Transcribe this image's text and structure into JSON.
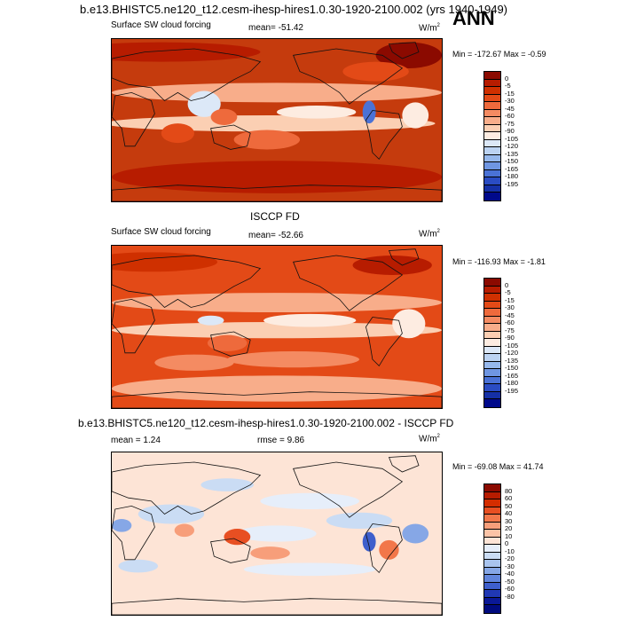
{
  "header": {
    "title": "b.e13.BHISTC5.ne120_t12.cesm-ihesp-hires1.0.30-1920-2100.002 (yrs 1940-1949)",
    "season": "ANN"
  },
  "chart_data": [
    {
      "type": "heatmap",
      "panel": "model",
      "title": "b.e13.BHISTC5.ne120_t12.cesm-ihesp-hires1.0.30-1920-2100.002 (yrs 1940-1949)",
      "variable": "Surface SW cloud forcing",
      "stat": "mean= -51.42",
      "units_base": "W/m",
      "units_exp": "2",
      "range_text": "Min = -172.67 Max =  -0.59",
      "colorbar_levels": [
        "0",
        "-5",
        "-15",
        "-30",
        "-45",
        "-60",
        "-75",
        "-90",
        "-105",
        "-120",
        "-135",
        "-150",
        "-165",
        "-180",
        "-195"
      ],
      "colorbar_colors": [
        "#8b0a00",
        "#b71c00",
        "#cf3000",
        "#e34a17",
        "#ee6a3c",
        "#f48b62",
        "#f8ad8a",
        "#fbcfb3",
        "#fdece1",
        "#dce8f7",
        "#bcd3f2",
        "#96b8ec",
        "#6f96e2",
        "#4a72d6",
        "#2a4cc3",
        "#1530a6",
        "#00098b"
      ],
      "base": "#c53b0d",
      "blobs": [
        {
          "cx": 0.5,
          "cy": 0.33,
          "rx": 0.5,
          "ry": 0.06,
          "c": "#f8ad8a"
        },
        {
          "cx": 0.48,
          "cy": 0.52,
          "rx": 0.5,
          "ry": 0.05,
          "c": "#fbcfb3"
        },
        {
          "cx": 0.62,
          "cy": 0.45,
          "rx": 0.12,
          "ry": 0.04,
          "c": "#fdece1"
        },
        {
          "cx": 0.28,
          "cy": 0.4,
          "rx": 0.05,
          "ry": 0.08,
          "c": "#dce8f7"
        },
        {
          "cx": 0.78,
          "cy": 0.45,
          "rx": 0.02,
          "ry": 0.07,
          "c": "#4a72d6"
        },
        {
          "cx": 0.92,
          "cy": 0.47,
          "rx": 0.04,
          "ry": 0.08,
          "c": "#fdece1"
        },
        {
          "cx": 0.2,
          "cy": 0.58,
          "rx": 0.05,
          "ry": 0.06,
          "c": "#e34a17"
        },
        {
          "cx": 0.47,
          "cy": 0.62,
          "rx": 0.1,
          "ry": 0.06,
          "c": "#ee6a3c"
        },
        {
          "cx": 0.15,
          "cy": 0.08,
          "rx": 0.3,
          "ry": 0.06,
          "c": "#b71c00"
        },
        {
          "cx": 0.9,
          "cy": 0.1,
          "rx": 0.1,
          "ry": 0.08,
          "c": "#8b0a00"
        },
        {
          "cx": 0.5,
          "cy": 0.85,
          "rx": 0.5,
          "ry": 0.1,
          "c": "#b71c00"
        },
        {
          "cx": 0.34,
          "cy": 0.48,
          "rx": 0.04,
          "ry": 0.05,
          "c": "#ee6a3c"
        },
        {
          "cx": 0.8,
          "cy": 0.2,
          "rx": 0.1,
          "ry": 0.06,
          "c": "#e34a17"
        }
      ]
    },
    {
      "type": "heatmap",
      "panel": "obs",
      "title": "ISCCP FD",
      "variable": "Surface SW cloud forcing",
      "stat": "mean= -52.66",
      "units_base": "W/m",
      "units_exp": "2",
      "range_text": "Min = -116.93 Max =  -1.81",
      "colorbar_levels": [
        "0",
        "-5",
        "-15",
        "-30",
        "-45",
        "-60",
        "-75",
        "-90",
        "-105",
        "-120",
        "-135",
        "-150",
        "-165",
        "-180",
        "-195"
      ],
      "colorbar_colors": [
        "#8b0a00",
        "#b71c00",
        "#cf3000",
        "#e34a17",
        "#ee6a3c",
        "#f48b62",
        "#f8ad8a",
        "#fbcfb3",
        "#fdece1",
        "#dce8f7",
        "#bcd3f2",
        "#96b8ec",
        "#6f96e2",
        "#4a72d6",
        "#2a4cc3",
        "#1530a6",
        "#00098b"
      ],
      "base": "#e34a17",
      "blobs": [
        {
          "cx": 0.5,
          "cy": 0.35,
          "rx": 0.5,
          "ry": 0.06,
          "c": "#f8ad8a"
        },
        {
          "cx": 0.5,
          "cy": 0.52,
          "rx": 0.5,
          "ry": 0.05,
          "c": "#fbcfb3"
        },
        {
          "cx": 0.6,
          "cy": 0.46,
          "rx": 0.14,
          "ry": 0.04,
          "c": "#fdece1"
        },
        {
          "cx": 0.9,
          "cy": 0.48,
          "rx": 0.05,
          "ry": 0.09,
          "c": "#fdece1"
        },
        {
          "cx": 0.55,
          "cy": 0.7,
          "rx": 0.2,
          "ry": 0.05,
          "c": "#f48b62"
        },
        {
          "cx": 0.25,
          "cy": 0.72,
          "rx": 0.12,
          "ry": 0.05,
          "c": "#f48b62"
        },
        {
          "cx": 0.5,
          "cy": 0.88,
          "rx": 0.5,
          "ry": 0.08,
          "c": "#f8ad8a"
        },
        {
          "cx": 0.12,
          "cy": 0.1,
          "rx": 0.2,
          "ry": 0.06,
          "c": "#cf3000"
        },
        {
          "cx": 0.85,
          "cy": 0.12,
          "rx": 0.12,
          "ry": 0.06,
          "c": "#b71c00"
        },
        {
          "cx": 0.3,
          "cy": 0.46,
          "rx": 0.04,
          "ry": 0.03,
          "c": "#dce8f7"
        },
        {
          "cx": 0.35,
          "cy": 0.6,
          "rx": 0.06,
          "ry": 0.05,
          "c": "#ee6a3c"
        }
      ]
    },
    {
      "type": "heatmap",
      "panel": "diff",
      "title": "b.e13.BHISTC5.ne120_t12.cesm-ihesp-hires1.0.30-1920-2100.002 - ISCCP FD",
      "stat": "mean =   1.24",
      "stat2": "rmse =   9.86",
      "units_base": "W/m",
      "units_exp": "2",
      "range_text": "Min = -69.08 Max =  41.74",
      "colorbar_levels": [
        "80",
        "60",
        "50",
        "40",
        "30",
        "20",
        "10",
        "0",
        "-10",
        "-20",
        "-30",
        "-40",
        "-50",
        "-60",
        "-80"
      ],
      "colorbar_colors": [
        "#8b0a00",
        "#b71c00",
        "#d42d00",
        "#e84f22",
        "#f2774a",
        "#f79e7a",
        "#fbc3a6",
        "#fde4d6",
        "#e6eefa",
        "#cadcf4",
        "#a9c4ee",
        "#86a7e6",
        "#6185dc",
        "#3e5fcc",
        "#2038b4",
        "#0a1896",
        "#000a7e"
      ],
      "base": "#fde4d6",
      "blobs": [
        {
          "cx": 0.5,
          "cy": 0.5,
          "rx": 0.12,
          "ry": 0.05,
          "c": "#e6eefa"
        },
        {
          "cx": 0.18,
          "cy": 0.38,
          "rx": 0.1,
          "ry": 0.06,
          "c": "#cadcf4"
        },
        {
          "cx": 0.75,
          "cy": 0.42,
          "rx": 0.1,
          "ry": 0.05,
          "c": "#cadcf4"
        },
        {
          "cx": 0.78,
          "cy": 0.55,
          "rx": 0.02,
          "ry": 0.06,
          "c": "#3e5fcc"
        },
        {
          "cx": 0.03,
          "cy": 0.45,
          "rx": 0.03,
          "ry": 0.04,
          "c": "#86a7e6"
        },
        {
          "cx": 0.38,
          "cy": 0.52,
          "rx": 0.04,
          "ry": 0.05,
          "c": "#e84f22"
        },
        {
          "cx": 0.22,
          "cy": 0.48,
          "rx": 0.03,
          "ry": 0.04,
          "c": "#f79e7a"
        },
        {
          "cx": 0.48,
          "cy": 0.62,
          "rx": 0.06,
          "ry": 0.04,
          "c": "#f79e7a"
        },
        {
          "cx": 0.84,
          "cy": 0.6,
          "rx": 0.03,
          "ry": 0.06,
          "c": "#f2774a"
        },
        {
          "cx": 0.92,
          "cy": 0.5,
          "rx": 0.04,
          "ry": 0.06,
          "c": "#86a7e6"
        },
        {
          "cx": 0.6,
          "cy": 0.3,
          "rx": 0.15,
          "ry": 0.05,
          "c": "#e6eefa"
        },
        {
          "cx": 0.35,
          "cy": 0.2,
          "rx": 0.08,
          "ry": 0.04,
          "c": "#cadcf4"
        },
        {
          "cx": 0.6,
          "cy": 0.72,
          "rx": 0.2,
          "ry": 0.04,
          "c": "#e6eefa"
        },
        {
          "cx": 0.08,
          "cy": 0.7,
          "rx": 0.06,
          "ry": 0.04,
          "c": "#cadcf4"
        }
      ]
    }
  ]
}
